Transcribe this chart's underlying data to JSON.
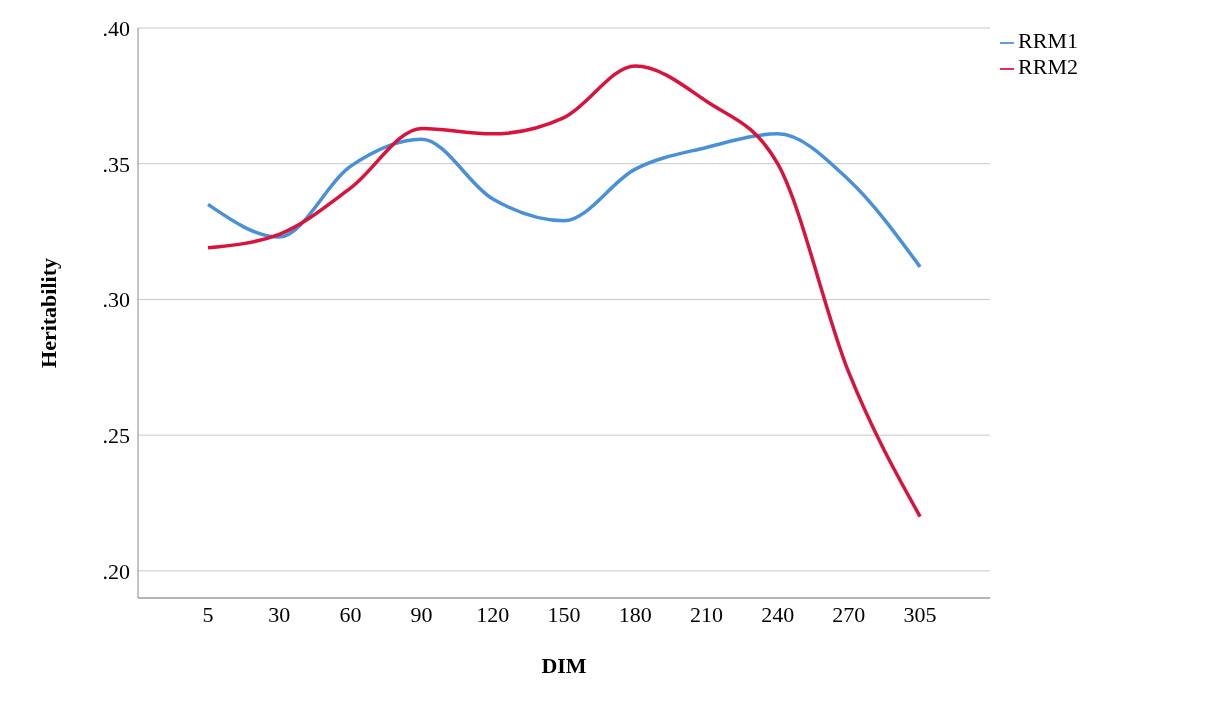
{
  "chart_data": {
    "type": "line",
    "xlabel": "DIM",
    "ylabel": "Heritability",
    "categories": [
      "5",
      "30",
      "60",
      "90",
      "120",
      "150",
      "180",
      "210",
      "240",
      "270",
      "305"
    ],
    "series": [
      {
        "name": "RRM1",
        "color": "#4a90d9",
        "values": [
          0.335,
          0.323,
          0.349,
          0.359,
          0.337,
          0.329,
          0.348,
          0.356,
          0.361,
          0.344,
          0.312
        ]
      },
      {
        "name": "RRM2",
        "color": "#d8143c",
        "values": [
          0.319,
          0.324,
          0.341,
          0.363,
          0.361,
          0.367,
          0.386,
          0.373,
          0.35,
          0.273,
          0.22
        ]
      }
    ],
    "ylim": [
      0.19,
      0.4
    ],
    "yticks": [
      {
        "value": 0.2,
        "label": ".20"
      },
      {
        "value": 0.25,
        "label": ".25"
      },
      {
        "value": 0.3,
        "label": ".30"
      },
      {
        "value": 0.35,
        "label": ".35"
      },
      {
        "value": 0.4,
        "label": ".40"
      }
    ],
    "grid": "y",
    "legend": "top right",
    "marker": "none",
    "line_style": "solid"
  }
}
